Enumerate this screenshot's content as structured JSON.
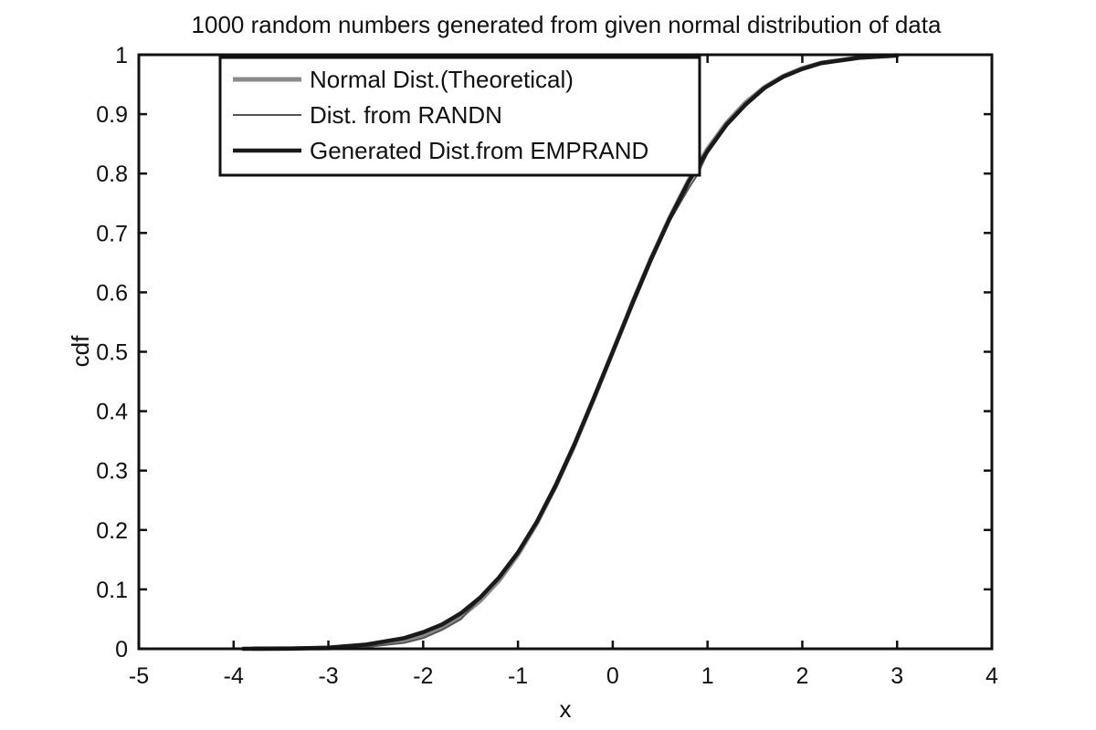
{
  "chart_data": {
    "type": "line",
    "title": "1000 random numbers generated from given normal distribution of data",
    "xlabel": "x",
    "ylabel": "cdf",
    "xlim": [
      -5,
      4
    ],
    "ylim": [
      0,
      1
    ],
    "xticks": [
      -5,
      -4,
      -3,
      -2,
      -1,
      0,
      1,
      2,
      3,
      4
    ],
    "yticks": [
      0,
      0.1,
      0.2,
      0.3,
      0.4,
      0.5,
      0.6,
      0.7,
      0.8,
      0.9,
      1
    ],
    "grid": false,
    "legend_position": "top-left",
    "series": [
      {
        "name": "Normal Dist.(Theoretical)",
        "color": "#8a8a8a",
        "x": [
          -3.8,
          -3.4,
          -3.0,
          -2.6,
          -2.2,
          -2.0,
          -1.8,
          -1.6,
          -1.4,
          -1.2,
          -1.0,
          -0.8,
          -0.6,
          -0.4,
          -0.2,
          0.0,
          0.2,
          0.4,
          0.6,
          0.8,
          1.0,
          1.2,
          1.4,
          1.6,
          1.8,
          2.0,
          2.2,
          2.6,
          3.0
        ],
        "values": [
          0.0001,
          0.0003,
          0.0013,
          0.0047,
          0.0139,
          0.0228,
          0.0359,
          0.0548,
          0.0808,
          0.1151,
          0.1587,
          0.2119,
          0.2743,
          0.3446,
          0.4207,
          0.5,
          0.5793,
          0.6554,
          0.7257,
          0.7881,
          0.8413,
          0.8849,
          0.9192,
          0.9452,
          0.9641,
          0.9772,
          0.9861,
          0.9953,
          0.9987
        ]
      },
      {
        "name": "Dist. from RANDN",
        "color": "#555555",
        "x": [
          -3.3,
          -3.0,
          -2.6,
          -2.2,
          -2.0,
          -1.8,
          -1.6,
          -1.4,
          -1.2,
          -1.0,
          -0.8,
          -0.6,
          -0.4,
          -0.2,
          0.0,
          0.2,
          0.4,
          0.6,
          0.8,
          0.9,
          1.0,
          1.2,
          1.4,
          1.6,
          1.8,
          2.0,
          2.2,
          2.6,
          3.0
        ],
        "values": [
          0.0,
          0.001,
          0.003,
          0.01,
          0.018,
          0.032,
          0.05,
          0.085,
          0.118,
          0.16,
          0.214,
          0.27,
          0.34,
          0.425,
          0.5,
          0.585,
          0.66,
          0.72,
          0.775,
          0.8,
          0.835,
          0.88,
          0.915,
          0.945,
          0.962,
          0.975,
          0.986,
          0.996,
          1.0
        ]
      },
      {
        "name": "Generated Dist.from EMPRAND",
        "color": "#1a1a1a",
        "x": [
          -3.9,
          -3.4,
          -3.0,
          -2.6,
          -2.2,
          -2.0,
          -1.8,
          -1.6,
          -1.4,
          -1.2,
          -1.0,
          -0.8,
          -0.6,
          -0.4,
          -0.2,
          0.0,
          0.2,
          0.4,
          0.6,
          0.8,
          1.0,
          1.2,
          1.4,
          1.6,
          1.8,
          2.0,
          2.2,
          2.6,
          3.0
        ],
        "values": [
          0.0,
          0.0005,
          0.002,
          0.007,
          0.018,
          0.028,
          0.041,
          0.06,
          0.086,
          0.12,
          0.162,
          0.214,
          0.276,
          0.346,
          0.422,
          0.5,
          0.578,
          0.654,
          0.724,
          0.786,
          0.838,
          0.882,
          0.916,
          0.944,
          0.963,
          0.976,
          0.986,
          0.995,
          0.999
        ]
      }
    ]
  }
}
